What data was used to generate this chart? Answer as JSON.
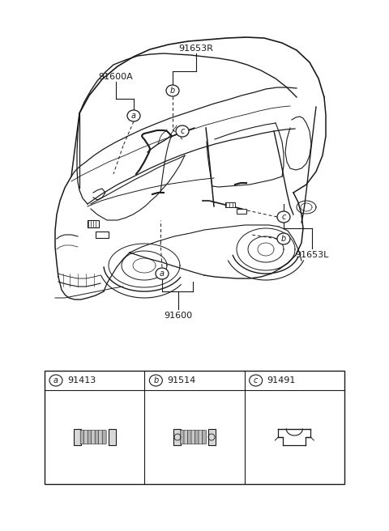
{
  "bg_color": "#ffffff",
  "line_color": "#1a1a1a",
  "text_color": "#1a1a1a",
  "fig_width": 4.8,
  "fig_height": 6.56,
  "dpi": 100,
  "parts": [
    {
      "label": "a",
      "part_no": "91413"
    },
    {
      "label": "b",
      "part_no": "91514"
    },
    {
      "label": "c",
      "part_no": "91491"
    }
  ]
}
